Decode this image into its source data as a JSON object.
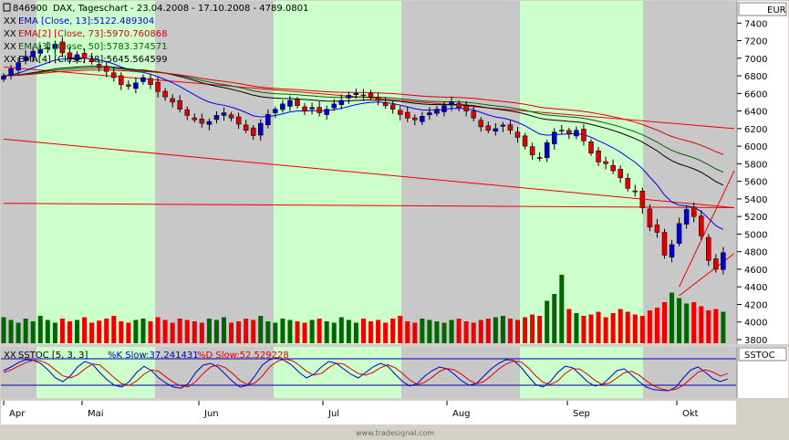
{
  "header": {
    "instrument": "846900",
    "title": "DAX, Tageschart - 23.04.2008 - 17.10.2008 - 4789.0801",
    "currency": "EUR"
  },
  "legend": {
    "ema1": "EMA [Close, 13]:5122.489304",
    "ema2": "EMA[2] [Close, 73]:5970.760868",
    "ema3": "EMA[3] [Close, 50]:5783.374571",
    "ema4": "EMA[4] [Close, 38]:5645.564599",
    "marker": "XX"
  },
  "stoch": {
    "title": "SSTOC [5, 3, 3]",
    "k_label": "%K Slow:37.241431",
    "d_label": "%D Slow:52.529228",
    "panel_label": "SSTOC"
  },
  "footer": "www.tradesignal.com",
  "colors": {
    "green_band": "#ccffcc",
    "gray_band": "#c8c8c8",
    "bull": "#0000cc",
    "bear": "#dd0000",
    "vol_up": "#006600",
    "vol_down": "#ee0000",
    "ema13": "#0000ff",
    "ema73": "#dd0000",
    "ema50": "#006600",
    "ema38": "#000000",
    "trend": "#ee0000"
  },
  "chart_data": {
    "type": "candlestick",
    "date_range": [
      "23.04.2008",
      "17.10.2008"
    ],
    "x_month_labels": [
      "Apr",
      "Mai",
      "Jun",
      "Jul",
      "Aug",
      "Sep",
      "Okt"
    ],
    "y_ticks": [
      7400,
      7200,
      7000,
      6800,
      6600,
      6400,
      6200,
      6000,
      5800,
      5600,
      5400,
      5200,
      5000,
      4800,
      4600,
      4400,
      4200,
      4000,
      3800
    ],
    "ylim": [
      3800,
      7600
    ],
    "close_path": [
      6800,
      6880,
      6950,
      7020,
      7080,
      7100,
      7120,
      7160,
      7060,
      7000,
      7040,
      7000,
      6960,
      6900,
      6850,
      6780,
      6700,
      6680,
      6720,
      6780,
      6700,
      6620,
      6560,
      6500,
      6420,
      6350,
      6300,
      6260,
      6280,
      6350,
      6380,
      6320,
      6250,
      6180,
      6120,
      6260,
      6360,
      6420,
      6480,
      6520,
      6460,
      6400,
      6440,
      6380,
      6420,
      6480,
      6520,
      6580,
      6600,
      6580,
      6560,
      6520,
      6460,
      6420,
      6360,
      6320,
      6300,
      6340,
      6380,
      6420,
      6460,
      6500,
      6440,
      6400,
      6320,
      6220,
      6180,
      6200,
      6240,
      6180,
      6100,
      6000,
      5900,
      5860,
      6040,
      6160,
      6180,
      6140,
      6180,
      6060,
      5920,
      5820,
      5800,
      5720,
      5640,
      5520,
      5480,
      5300,
      5080,
      5020,
      4760,
      4880,
      5120,
      5280,
      5200,
      4980,
      4700,
      4600,
      4789
    ],
    "volume": [
      0.38,
      0.34,
      0.3,
      0.36,
      0.32,
      0.4,
      0.34,
      0.3,
      0.36,
      0.32,
      0.34,
      0.38,
      0.3,
      0.33,
      0.36,
      0.4,
      0.32,
      0.3,
      0.34,
      0.36,
      0.32,
      0.38,
      0.34,
      0.3,
      0.36,
      0.34,
      0.32,
      0.3,
      0.36,
      0.34,
      0.38,
      0.3,
      0.32,
      0.36,
      0.34,
      0.4,
      0.32,
      0.3,
      0.36,
      0.34,
      0.32,
      0.3,
      0.34,
      0.36,
      0.32,
      0.3,
      0.38,
      0.34,
      0.3,
      0.36,
      0.32,
      0.34,
      0.3,
      0.36,
      0.4,
      0.32,
      0.3,
      0.36,
      0.34,
      0.32,
      0.3,
      0.34,
      0.36,
      0.32,
      0.3,
      0.34,
      0.36,
      0.38,
      0.4,
      0.36,
      0.34,
      0.38,
      0.42,
      0.4,
      0.62,
      0.72,
      1.0,
      0.5,
      0.44,
      0.4,
      0.42,
      0.46,
      0.38,
      0.44,
      0.5,
      0.46,
      0.42,
      0.4,
      0.48,
      0.52,
      0.6,
      0.74,
      0.66,
      0.58,
      0.6,
      0.54,
      0.48,
      0.5,
      0.46
    ],
    "stoch_k": [
      60,
      70,
      82,
      90,
      88,
      80,
      62,
      40,
      30,
      45,
      70,
      85,
      78,
      55,
      35,
      20,
      15,
      30,
      55,
      72,
      60,
      40,
      25,
      15,
      12,
      25,
      55,
      75,
      80,
      70,
      50,
      30,
      15,
      20,
      45,
      75,
      90,
      95,
      88,
      75,
      55,
      40,
      50,
      70,
      85,
      80,
      65,
      50,
      40,
      55,
      70,
      80,
      72,
      50,
      30,
      18,
      25,
      45,
      60,
      70,
      65,
      50,
      32,
      20,
      25,
      45,
      65,
      80,
      90,
      88,
      70,
      45,
      22,
      15,
      30,
      55,
      72,
      68,
      50,
      30,
      18,
      22,
      40,
      60,
      65,
      48,
      30,
      15,
      8,
      6,
      5,
      15,
      40,
      62,
      70,
      55,
      38,
      30,
      37
    ],
    "stoch_d": [
      55,
      62,
      72,
      82,
      88,
      87,
      78,
      62,
      46,
      40,
      48,
      65,
      78,
      76,
      58,
      40,
      24,
      20,
      32,
      50,
      62,
      58,
      42,
      28,
      18,
      16,
      30,
      52,
      70,
      76,
      68,
      52,
      33,
      22,
      26,
      45,
      70,
      85,
      92,
      88,
      75,
      58,
      48,
      52,
      68,
      80,
      78,
      65,
      52,
      48,
      55,
      68,
      76,
      68,
      52,
      34,
      22,
      28,
      42,
      58,
      66,
      62,
      50,
      34,
      24,
      30,
      46,
      64,
      78,
      86,
      84,
      68,
      46,
      28,
      22,
      32,
      52,
      66,
      64,
      50,
      34,
      22,
      26,
      40,
      54,
      58,
      48,
      32,
      18,
      10,
      6,
      9,
      20,
      38,
      56,
      62,
      56,
      45,
      52
    ]
  }
}
